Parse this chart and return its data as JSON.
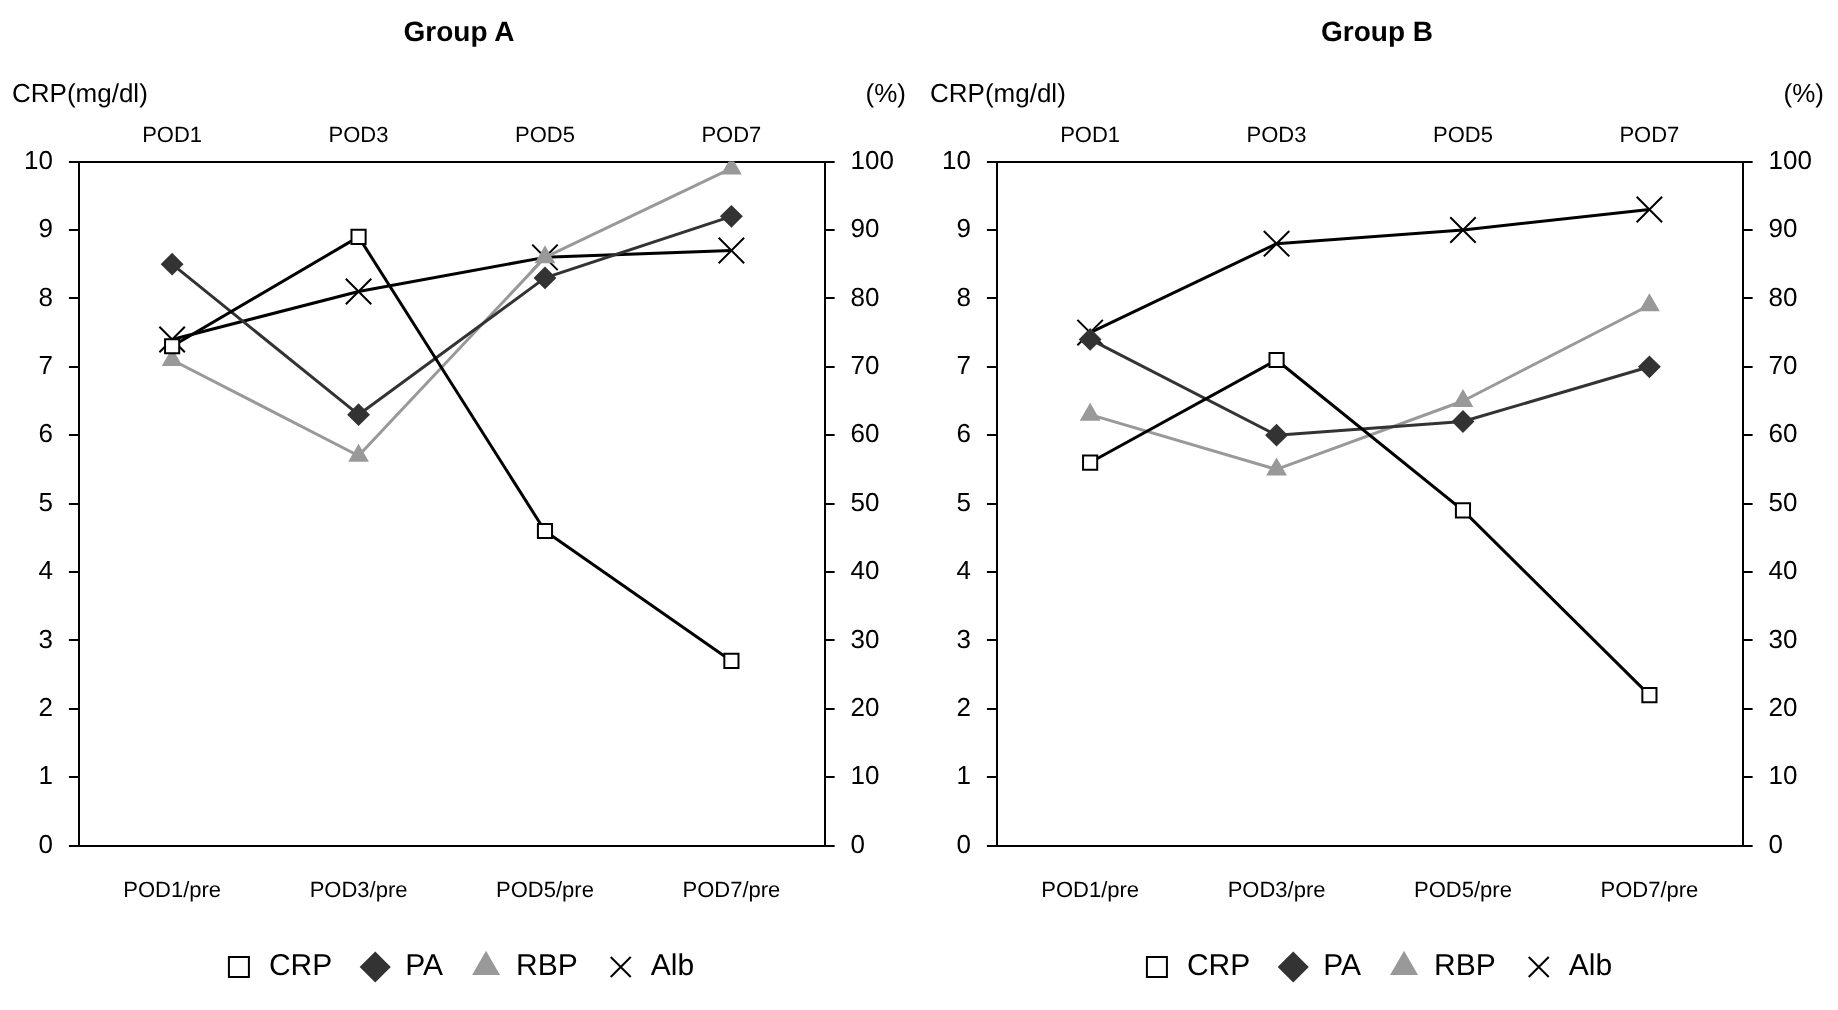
{
  "chart_data": [
    {
      "type": "line",
      "title": "Group A",
      "ylabel": "CRP(mg/dl)",
      "y2label": "(%)",
      "categories": [
        "POD1/pre",
        "POD3/pre",
        "POD5/pre",
        "POD7/pre"
      ],
      "annotations": [
        "POD1",
        "POD3",
        "POD5",
        "POD7"
      ],
      "ylim": [
        0,
        10
      ],
      "yticks": [
        0,
        1,
        2,
        3,
        4,
        5,
        6,
        7,
        8,
        9,
        10
      ],
      "y2lim": [
        0,
        100
      ],
      "y2ticks": [
        0,
        10,
        20,
        30,
        40,
        50,
        60,
        70,
        80,
        90,
        100
      ],
      "grid": false,
      "legend": "bottom",
      "line_style": "solid",
      "series": [
        {
          "name": "CRP",
          "color": "#000000",
          "marker": "square",
          "values": [
            7.3,
            8.9,
            4.6,
            2.7
          ]
        },
        {
          "name": "PA",
          "color": "#333333",
          "marker": "diamond",
          "axis": "y2",
          "values": [
            85,
            63,
            83,
            92
          ]
        },
        {
          "name": "RBP",
          "color": "#999999",
          "marker": "triangle",
          "axis": "y2",
          "values": [
            71,
            57,
            86,
            99
          ]
        },
        {
          "name": "Alb",
          "color": "#000000",
          "marker": "cross",
          "axis": "y2",
          "values": [
            74,
            81,
            86,
            87
          ]
        }
      ]
    },
    {
      "type": "line",
      "title": "Group B",
      "ylabel": "CRP(mg/dl)",
      "y2label": "(%)",
      "categories": [
        "POD1/pre",
        "POD3/pre",
        "POD5/pre",
        "POD7/pre"
      ],
      "annotations": [
        "POD1",
        "POD3",
        "POD5",
        "POD7"
      ],
      "ylim": [
        0,
        10
      ],
      "yticks": [
        0,
        1,
        2,
        3,
        4,
        5,
        6,
        7,
        8,
        9,
        10
      ],
      "y2lim": [
        0,
        100
      ],
      "y2ticks": [
        0,
        10,
        20,
        30,
        40,
        50,
        60,
        70,
        80,
        90,
        100
      ],
      "grid": false,
      "legend": "bottom",
      "line_style": "solid",
      "series": [
        {
          "name": "CRP",
          "color": "#000000",
          "marker": "square",
          "values": [
            5.6,
            7.1,
            4.9,
            2.2
          ]
        },
        {
          "name": "PA",
          "color": "#333333",
          "marker": "diamond",
          "axis": "y2",
          "values": [
            74,
            60,
            62,
            70
          ]
        },
        {
          "name": "RBP",
          "color": "#999999",
          "marker": "triangle",
          "axis": "y2",
          "values": [
            63,
            55,
            65,
            79
          ]
        },
        {
          "name": "Alb",
          "color": "#000000",
          "marker": "cross",
          "axis": "y2",
          "values": [
            75,
            88,
            90,
            93
          ]
        }
      ]
    }
  ]
}
